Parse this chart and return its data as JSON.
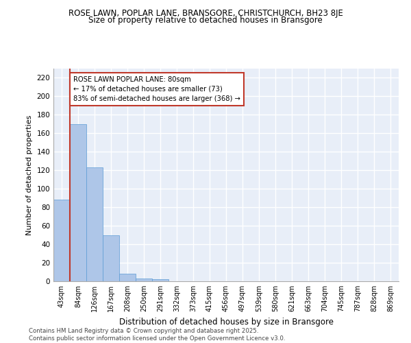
{
  "title_line1": "ROSE LAWN, POPLAR LANE, BRANSGORE, CHRISTCHURCH, BH23 8JE",
  "title_line2": "Size of property relative to detached houses in Bransgore",
  "xlabel": "Distribution of detached houses by size in Bransgore",
  "ylabel": "Number of detached properties",
  "categories": [
    "43sqm",
    "84sqm",
    "126sqm",
    "167sqm",
    "208sqm",
    "250sqm",
    "291sqm",
    "332sqm",
    "373sqm",
    "415sqm",
    "456sqm",
    "497sqm",
    "539sqm",
    "580sqm",
    "621sqm",
    "663sqm",
    "704sqm",
    "745sqm",
    "787sqm",
    "828sqm",
    "869sqm"
  ],
  "values": [
    88,
    170,
    123,
    50,
    8,
    3,
    2,
    0,
    0,
    0,
    0,
    0,
    0,
    0,
    0,
    0,
    0,
    0,
    0,
    0,
    0
  ],
  "bar_color": "#aec6e8",
  "bar_edge_color": "#5b9bd5",
  "vline_color": "#c0392b",
  "vline_x": 1,
  "annotation_text": "ROSE LAWN POPLAR LANE: 80sqm\n← 17% of detached houses are smaller (73)\n83% of semi-detached houses are larger (368) →",
  "annotation_box_color": "#c0392b",
  "ylim": [
    0,
    230
  ],
  "yticks": [
    0,
    20,
    40,
    60,
    80,
    100,
    120,
    140,
    160,
    180,
    200,
    220
  ],
  "bg_color": "#e8eef8",
  "grid_color": "#ffffff",
  "footer_line1": "Contains HM Land Registry data © Crown copyright and database right 2025.",
  "footer_line2": "Contains public sector information licensed under the Open Government Licence v3.0."
}
